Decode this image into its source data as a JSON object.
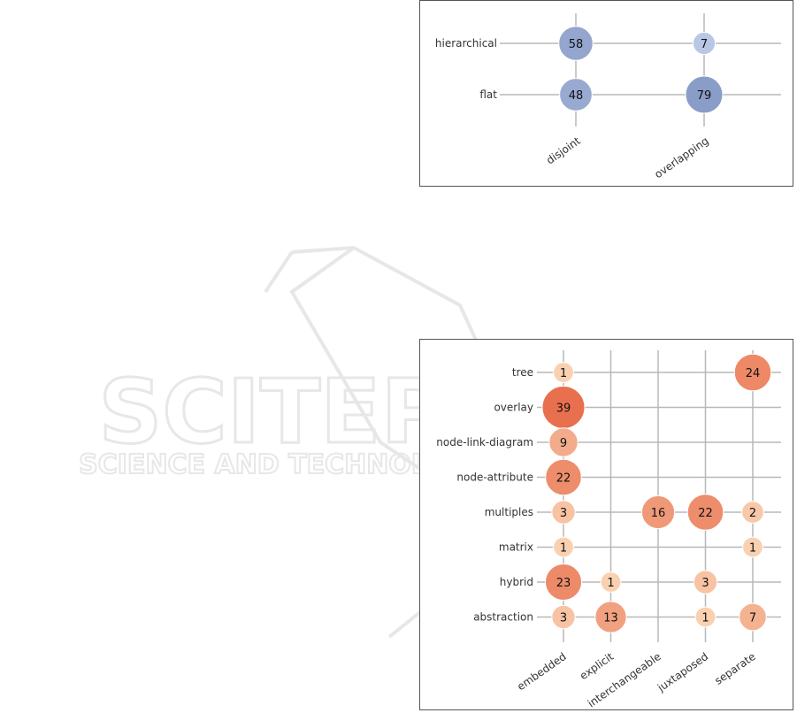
{
  "colors": {
    "top_scale": [
      "#cdd8f2",
      "#8a9dc8"
    ],
    "bottom_scale": [
      "#fde3c3",
      "#e8704e"
    ],
    "grid": "#b8b8b8",
    "watermark": "#e7e7e7"
  },
  "chart_data": [
    {
      "type": "scatter",
      "encoding": "bubble-matrix",
      "rows": [
        "hierarchical",
        "flat"
      ],
      "columns": [
        "disjoint",
        "overlapping"
      ],
      "cells": [
        {
          "row": "hierarchical",
          "col": "disjoint",
          "value": 58
        },
        {
          "row": "hierarchical",
          "col": "overlapping",
          "value": 7
        },
        {
          "row": "flat",
          "col": "disjoint",
          "value": 48
        },
        {
          "row": "flat",
          "col": "overlapping",
          "value": 79
        }
      ],
      "grid": true,
      "legend": "none"
    },
    {
      "type": "scatter",
      "encoding": "bubble-matrix",
      "rows": [
        "tree",
        "overlay",
        "node-link-diagram",
        "node-attribute",
        "multiples",
        "matrix",
        "hybrid",
        "abstraction"
      ],
      "columns": [
        "embedded",
        "explicit",
        "interchangeable",
        "juxtaposed",
        "separate"
      ],
      "cells": [
        {
          "row": "tree",
          "col": "embedded",
          "value": 1
        },
        {
          "row": "tree",
          "col": "separate",
          "value": 24
        },
        {
          "row": "overlay",
          "col": "embedded",
          "value": 39
        },
        {
          "row": "node-link-diagram",
          "col": "embedded",
          "value": 9
        },
        {
          "row": "node-attribute",
          "col": "embedded",
          "value": 22
        },
        {
          "row": "multiples",
          "col": "embedded",
          "value": 3
        },
        {
          "row": "multiples",
          "col": "interchangeable",
          "value": 16
        },
        {
          "row": "multiples",
          "col": "juxtaposed",
          "value": 22
        },
        {
          "row": "multiples",
          "col": "separate",
          "value": 2
        },
        {
          "row": "matrix",
          "col": "embedded",
          "value": 1
        },
        {
          "row": "matrix",
          "col": "separate",
          "value": 1
        },
        {
          "row": "hybrid",
          "col": "embedded",
          "value": 23
        },
        {
          "row": "hybrid",
          "col": "explicit",
          "value": 1
        },
        {
          "row": "hybrid",
          "col": "juxtaposed",
          "value": 3
        },
        {
          "row": "abstraction",
          "col": "embedded",
          "value": 3
        },
        {
          "row": "abstraction",
          "col": "explicit",
          "value": 13
        },
        {
          "row": "abstraction",
          "col": "juxtaposed",
          "value": 1
        },
        {
          "row": "abstraction",
          "col": "separate",
          "value": 7
        }
      ],
      "grid": true,
      "legend": "none"
    }
  ],
  "watermark": {
    "line1": "SCITEPRESS",
    "line2": "SCIENCE AND TECHNOLOGY PUBLICATIONS"
  }
}
